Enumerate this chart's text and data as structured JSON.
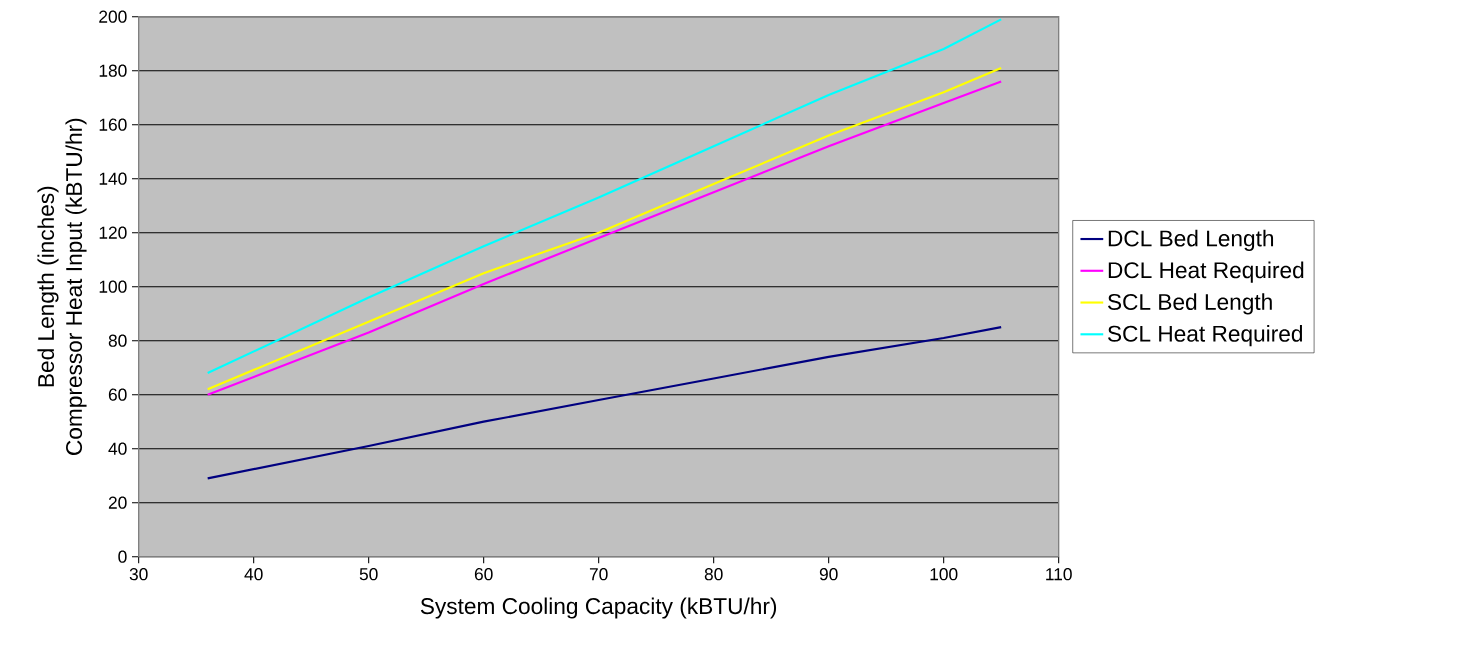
{
  "chart_data": {
    "type": "line",
    "xlabel": "System Cooling Capacity (kBTU/hr)",
    "ylabel": "Bed Length (inches) Compressor Heat Input (kBTU/hr)",
    "x": [
      36,
      50,
      60,
      70,
      80,
      90,
      100,
      105
    ],
    "series": [
      {
        "name": "DCL Bed Length",
        "color": "#000080",
        "values": [
          29,
          41,
          50,
          58,
          66,
          74,
          81,
          85
        ]
      },
      {
        "name": "DCL Heat Required",
        "color": "#ff00ff",
        "values": [
          60,
          83,
          101,
          118,
          135,
          152,
          168,
          176
        ]
      },
      {
        "name": "SCL Bed Length",
        "color": "#ffff00",
        "values": [
          62,
          87,
          105,
          120,
          138,
          156,
          172,
          181
        ]
      },
      {
        "name": "SCL Heat Required",
        "color": "#00ffff",
        "values": [
          68,
          96,
          115,
          133,
          152,
          171,
          188,
          199
        ]
      }
    ],
    "xlim": [
      30,
      110
    ],
    "xticks": [
      30,
      40,
      50,
      60,
      70,
      80,
      90,
      100,
      110
    ],
    "ylim": [
      0,
      200
    ],
    "yticks": [
      0,
      20,
      40,
      60,
      80,
      100,
      120,
      140,
      160,
      180,
      200
    ],
    "grid": "y",
    "legend": "right",
    "marker": "none",
    "line_style": "solid"
  }
}
